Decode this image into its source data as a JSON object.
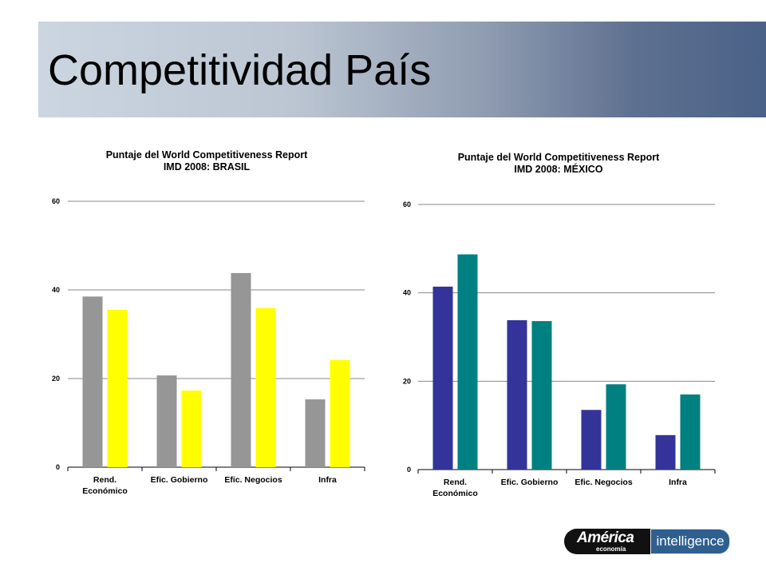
{
  "page": {
    "title": "Competitividad País"
  },
  "logo": {
    "brand": "América",
    "sub": "economía",
    "product": "intelligence"
  },
  "chart_data": [
    {
      "type": "bar",
      "title": [
        "Puntaje del World Competitiveness Report",
        "IMD 2008: BRASIL"
      ],
      "categories": [
        [
          "Rend.",
          "Económico"
        ],
        [
          "Efic. Gobierno"
        ],
        [
          "Efic. Negocios"
        ],
        [
          "Infra"
        ]
      ],
      "series": [
        {
          "values": [
            38.5,
            20.7,
            43.8,
            15.3
          ],
          "color": "#969696"
        },
        {
          "values": [
            35.5,
            17.3,
            35.9,
            24.2
          ],
          "color": "#ffff00"
        }
      ],
      "yticks": [
        "0",
        "20",
        "40",
        "60"
      ],
      "ylim": [
        0,
        60
      ],
      "grid": true
    },
    {
      "type": "bar",
      "title": [
        "Puntaje del World Competitiveness Report",
        "IMD 2008: MÉXICO"
      ],
      "categories": [
        [
          "Rend.",
          "Económico"
        ],
        [
          "Efic. Gobierno"
        ],
        [
          "Efic. Negocios"
        ],
        [
          "Infra"
        ]
      ],
      "series": [
        {
          "values": [
            41.4,
            33.8,
            13.5,
            7.8
          ],
          "color": "#333399"
        },
        {
          "values": [
            48.7,
            33.6,
            19.3,
            17.0
          ],
          "color": "#008080"
        }
      ],
      "yticks": [
        "0",
        "20",
        "40",
        "60"
      ],
      "ylim": [
        0,
        60
      ],
      "grid": true
    }
  ]
}
